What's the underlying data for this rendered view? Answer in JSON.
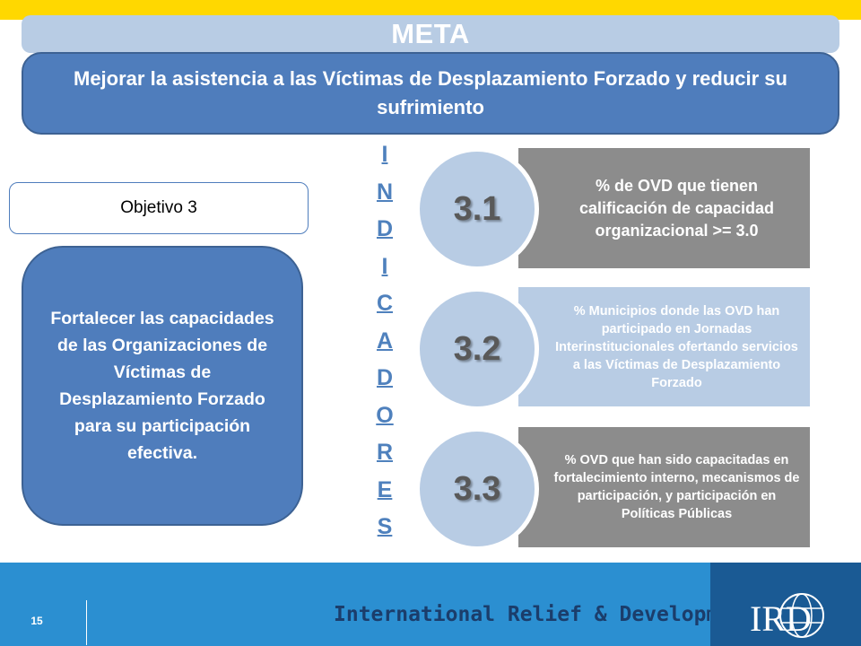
{
  "header": {
    "meta_title": "META",
    "goal": "Mejorar la asistencia a las Víctimas de Desplazamiento Forzado y reducir su sufrimiento"
  },
  "objective": {
    "label": "Objetivo 3",
    "description": "Fortalecer  las capacidades de las Organizaciones de Víctimas de Desplazamiento Forzado para su participación efectiva."
  },
  "indicators_word": [
    "I",
    "N",
    "D",
    "I",
    "C",
    "A",
    "D",
    "O",
    "R",
    "E",
    "S"
  ],
  "indicators": [
    {
      "number": "3.1",
      "text": "% de OVD que tienen calificación de capacidad organizacional >= 3.0"
    },
    {
      "number": "3.2",
      "text": "% Municipios  donde las OVD han participado  en Jornadas Interinstitucionales  ofertando servicios a las  Víctimas de Desplazamiento  Forzado"
    },
    {
      "number": "3.3",
      "text": "% OVD  que han sido capacitadas en fortalecimiento interno, mecanismos de participación, y participación en Políticas Públicas"
    }
  ],
  "footer": {
    "page_number": "15",
    "organization": "International Relief & Development",
    "logo_text": "IRD"
  },
  "colors": {
    "accent_yellow": "#ffd800",
    "primary_blue": "#4f7dbc",
    "light_blue": "#b8cce4",
    "gray": "#8c8c8c",
    "footer_blue": "#2b8fd1",
    "logo_panel_blue": "#1a5a94"
  }
}
